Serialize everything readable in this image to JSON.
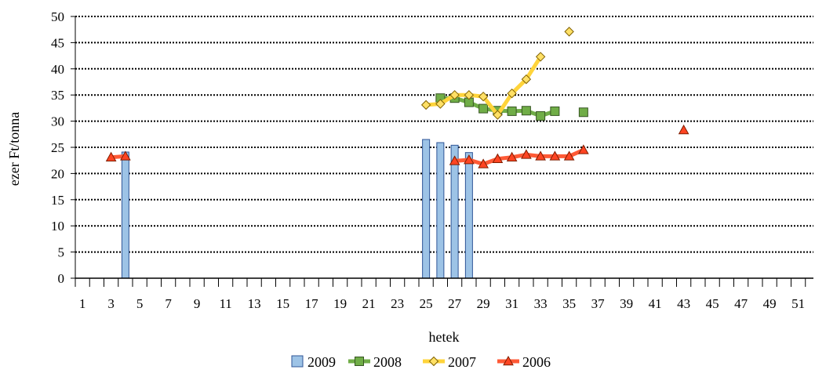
{
  "chart_data": {
    "type": "bar",
    "title": "",
    "xlabel": "hetek",
    "ylabel": "ezer Ft/tonna",
    "ylim": [
      0,
      50
    ],
    "y_ticks": [
      "0",
      "5",
      "10",
      "15",
      "20",
      "25",
      "30",
      "35",
      "40",
      "45",
      "50"
    ],
    "x_range": [
      1,
      52
    ],
    "x_ticks": [
      "1",
      "3",
      "5",
      "7",
      "9",
      "11",
      "13",
      "15",
      "17",
      "19",
      "21",
      "23",
      "25",
      "27",
      "29",
      "31",
      "33",
      "35",
      "37",
      "39",
      "41",
      "43",
      "45",
      "47",
      "49",
      "51"
    ],
    "grid": true,
    "legend_position": "bottom",
    "series": [
      {
        "name": "2009",
        "kind": "bar",
        "color": "#9dc3e6",
        "stroke": "#2f5597",
        "points": [
          [
            4,
            24.1
          ],
          [
            25,
            26.5
          ],
          [
            26,
            25.9
          ],
          [
            27,
            25.4
          ],
          [
            28,
            24.0
          ]
        ]
      },
      {
        "name": "2008",
        "kind": "line",
        "marker": "square",
        "color": "#70ad47",
        "marker_fill": "#70ad47",
        "marker_stroke": "#375623",
        "segments": [
          [
            [
              26,
              34.4
            ],
            [
              27,
              34.4
            ],
            [
              28,
              33.6
            ],
            [
              29,
              32.4
            ],
            [
              30,
              32.0
            ],
            [
              31,
              31.9
            ],
            [
              32,
              32.0
            ],
            [
              33,
              31.0
            ],
            [
              34,
              31.9
            ]
          ],
          [
            [
              36,
              31.7
            ]
          ]
        ]
      },
      {
        "name": "2007",
        "kind": "line",
        "marker": "diamond",
        "color": "#ffd43b",
        "marker_fill": "#ffe066",
        "marker_stroke": "#7f6000",
        "segments": [
          [
            [
              25,
              33.1
            ],
            [
              26,
              33.3
            ],
            [
              27,
              35.0
            ],
            [
              28,
              35.0
            ],
            [
              29,
              34.7
            ],
            [
              30,
              31.2
            ],
            [
              31,
              35.3
            ],
            [
              32,
              38.0
            ],
            [
              33,
              42.3
            ]
          ],
          [
            [
              35,
              47.1
            ]
          ]
        ]
      },
      {
        "name": "2006",
        "kind": "line",
        "marker": "triangle",
        "color": "#ff5a36",
        "marker_fill": "#ff4422",
        "marker_stroke": "#7f1d00",
        "segments": [
          [
            [
              3,
              23.1
            ],
            [
              4,
              23.3
            ]
          ],
          [
            [
              27,
              22.4
            ],
            [
              28,
              22.6
            ],
            [
              29,
              21.8
            ],
            [
              30,
              22.8
            ],
            [
              31,
              23.1
            ],
            [
              32,
              23.6
            ],
            [
              33,
              23.3
            ],
            [
              34,
              23.3
            ],
            [
              35,
              23.3
            ],
            [
              36,
              24.5
            ]
          ],
          [
            [
              43,
              28.3
            ]
          ]
        ]
      }
    ]
  }
}
